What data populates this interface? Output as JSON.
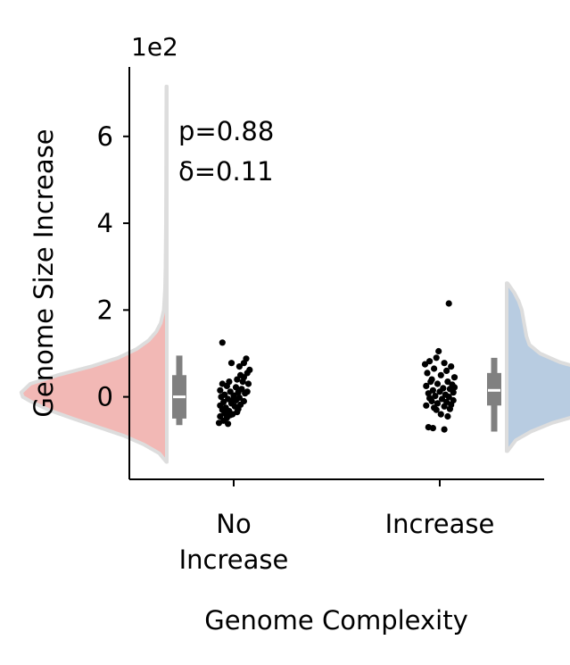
{
  "chart_data": {
    "type": "violin",
    "title": "",
    "xlabel": "Genome Complexity",
    "ylabel": "Genome Size Increase",
    "offset_label": "1e2",
    "y_scale_factor": 100,
    "ylim": [
      -190,
      760
    ],
    "yticks": [
      0,
      200,
      400,
      600
    ],
    "ytick_labels": [
      "0",
      "2",
      "4",
      "6"
    ],
    "categories": [
      {
        "label_lines": [
          "No",
          "Increase"
        ]
      },
      {
        "label_lines": [
          "Increase"
        ]
      }
    ],
    "annotation": {
      "lines": [
        "p=0.88",
        "δ=0.11"
      ]
    },
    "colors": {
      "no_increase_fill": "#f2b8b5",
      "increase_fill": "#b8cce1",
      "violin_edge": "#dddddd",
      "box": "#808080",
      "median": "#ffffff",
      "points": "#000000"
    },
    "groups": [
      {
        "name": "",
        "category_index": 0,
        "side": "left",
        "box": {
          "q1": -50,
          "median": 0,
          "q3": 50,
          "whisker_low": -65,
          "whisker_high": 95
        },
        "points": [
          [
            -0.1,
            125
          ],
          [
            -0.02,
            78
          ],
          [
            0.11,
            88
          ],
          [
            0.09,
            78
          ],
          [
            0.05,
            70
          ],
          [
            0.14,
            62
          ],
          [
            0.12,
            55
          ],
          [
            0.06,
            50
          ],
          [
            0.09,
            45
          ],
          [
            0.03,
            40
          ],
          [
            0.08,
            35
          ],
          [
            0.13,
            30
          ],
          [
            -0.04,
            35
          ],
          [
            -0.1,
            30
          ],
          [
            -0.06,
            25
          ],
          [
            0.02,
            22
          ],
          [
            0.07,
            18
          ],
          [
            -0.12,
            15
          ],
          [
            -0.03,
            12
          ],
          [
            0.04,
            10
          ],
          [
            0.1,
            8
          ],
          [
            -0.08,
            5
          ],
          [
            0.0,
            3
          ],
          [
            -0.11,
            0
          ],
          [
            0.05,
            -2
          ],
          [
            -0.05,
            -5
          ],
          [
            0.02,
            -8
          ],
          [
            0.09,
            -10
          ],
          [
            -0.09,
            -12
          ],
          [
            -0.02,
            -15
          ],
          [
            0.06,
            -18
          ],
          [
            -0.12,
            -20
          ],
          [
            0.01,
            -22
          ],
          [
            -0.07,
            -25
          ],
          [
            0.04,
            -28
          ],
          [
            -0.1,
            -30
          ],
          [
            -0.04,
            -33
          ],
          [
            0.03,
            -35
          ],
          [
            -0.08,
            -38
          ],
          [
            -0.01,
            -40
          ],
          [
            -0.12,
            -45
          ],
          [
            -0.06,
            -48
          ],
          [
            -0.09,
            -55
          ],
          [
            -0.13,
            -60
          ],
          [
            -0.05,
            -62
          ],
          [
            0.12,
            12
          ],
          [
            0.0,
            -5
          ],
          [
            -0.03,
            -42
          ]
        ],
        "violin_half": [
          [
            -150,
            0.003
          ],
          [
            -130,
            0.05
          ],
          [
            -110,
            0.15
          ],
          [
            -90,
            0.28
          ],
          [
            -70,
            0.45
          ],
          [
            -50,
            0.62
          ],
          [
            -30,
            0.78
          ],
          [
            -10,
            0.9
          ],
          [
            0,
            0.95
          ],
          [
            10,
            0.96
          ],
          [
            30,
            0.9
          ],
          [
            50,
            0.72
          ],
          [
            70,
            0.5
          ],
          [
            90,
            0.32
          ],
          [
            110,
            0.2
          ],
          [
            130,
            0.12
          ],
          [
            150,
            0.07
          ],
          [
            170,
            0.04
          ],
          [
            200,
            0.02
          ],
          [
            250,
            0.012
          ],
          [
            300,
            0.009
          ],
          [
            400,
            0.006
          ],
          [
            500,
            0.005
          ],
          [
            600,
            0.004
          ],
          [
            715,
            0.003
          ]
        ]
      },
      {
        "name": "",
        "category_index": 1,
        "side": "right",
        "box": {
          "q1": -20,
          "median": 15,
          "q3": 55,
          "whisker_low": -80,
          "whisker_high": 90
        },
        "points": [
          [
            0.08,
            215
          ],
          [
            -0.01,
            105
          ],
          [
            -0.03,
            90
          ],
          [
            -0.09,
            82
          ],
          [
            0.04,
            78
          ],
          [
            -0.13,
            75
          ],
          [
            0.1,
            70
          ],
          [
            -0.05,
            65
          ],
          [
            0.06,
            60
          ],
          [
            -0.11,
            55
          ],
          [
            0.01,
            50
          ],
          [
            0.13,
            45
          ],
          [
            -0.07,
            40
          ],
          [
            0.07,
            35
          ],
          [
            -0.02,
            30
          ],
          [
            0.11,
            28
          ],
          [
            -0.12,
            25
          ],
          [
            0.03,
            20
          ],
          [
            0.09,
            18
          ],
          [
            -0.06,
            15
          ],
          [
            0.0,
            12
          ],
          [
            0.12,
            10
          ],
          [
            -0.1,
            8
          ],
          [
            0.05,
            5
          ],
          [
            -0.04,
            2
          ],
          [
            0.08,
            0
          ],
          [
            -0.09,
            -3
          ],
          [
            0.02,
            -5
          ],
          [
            0.12,
            -8
          ],
          [
            -0.07,
            -10
          ],
          [
            0.06,
            -12
          ],
          [
            -0.02,
            -15
          ],
          [
            0.1,
            -18
          ],
          [
            -0.12,
            -20
          ],
          [
            0.04,
            -22
          ],
          [
            -0.05,
            -25
          ],
          [
            0.09,
            -28
          ],
          [
            -0.03,
            -30
          ],
          [
            0.01,
            -40
          ],
          [
            0.07,
            -45
          ],
          [
            -0.1,
            -70
          ],
          [
            -0.06,
            -72
          ],
          [
            0.04,
            -75
          ],
          [
            0.13,
            22
          ],
          [
            -0.08,
            35
          ]
        ],
        "violin_half": [
          [
            -125,
            0.005
          ],
          [
            -100,
            0.06
          ],
          [
            -80,
            0.16
          ],
          [
            -60,
            0.3
          ],
          [
            -40,
            0.5
          ],
          [
            -20,
            0.72
          ],
          [
            0,
            0.9
          ],
          [
            10,
            1.0
          ],
          [
            20,
            0.97
          ],
          [
            40,
            0.8
          ],
          [
            60,
            0.55
          ],
          [
            80,
            0.35
          ],
          [
            100,
            0.22
          ],
          [
            120,
            0.15
          ],
          [
            140,
            0.13
          ],
          [
            160,
            0.12
          ],
          [
            180,
            0.11
          ],
          [
            200,
            0.1
          ],
          [
            220,
            0.08
          ],
          [
            240,
            0.05
          ],
          [
            255,
            0.02
          ],
          [
            262,
            0.005
          ]
        ]
      }
    ]
  }
}
